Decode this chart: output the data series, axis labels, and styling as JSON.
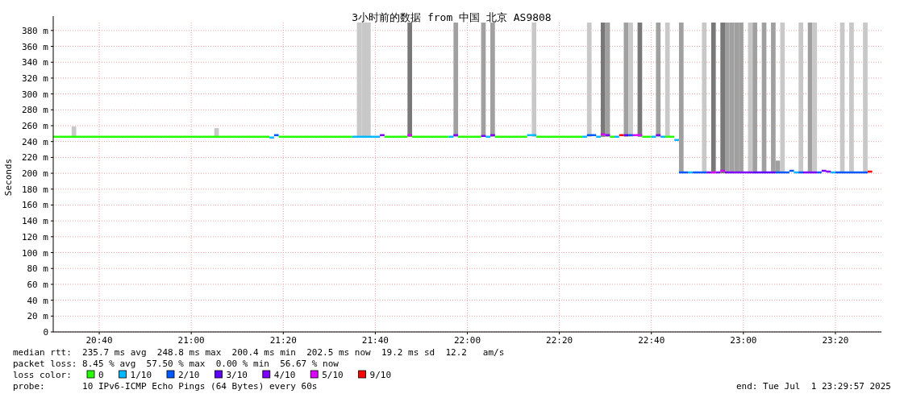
{
  "chart_data": {
    "type": "step",
    "title": "3小时前的数据 from 中国 北京 AS9808",
    "ylabel": "Seconds",
    "xlim": [
      "2025-07-01T20:30",
      "2025-07-01T23:30"
    ],
    "xticks": [
      {
        "value": "2025-07-01T20:40",
        "label": "20:40"
      },
      {
        "value": "2025-07-01T21:00",
        "label": "21:00"
      },
      {
        "value": "2025-07-01T21:20",
        "label": "21:20"
      },
      {
        "value": "2025-07-01T21:40",
        "label": "21:40"
      },
      {
        "value": "2025-07-01T22:00",
        "label": "22:00"
      },
      {
        "value": "2025-07-01T22:20",
        "label": "22:20"
      },
      {
        "value": "2025-07-01T22:40",
        "label": "22:40"
      },
      {
        "value": "2025-07-01T23:00",
        "label": "23:00"
      },
      {
        "value": "2025-07-01T23:20",
        "label": "23:20"
      }
    ],
    "ylim": [
      0,
      390
    ],
    "yticks": [
      0,
      {
        "value": 20,
        "label": "20 m"
      },
      {
        "value": 40,
        "label": "40 m"
      },
      {
        "value": 60,
        "label": "60 m"
      },
      {
        "value": 80,
        "label": "80 m"
      },
      {
        "value": 100,
        "label": "100 m"
      },
      {
        "value": 120,
        "label": "120 m"
      },
      {
        "value": 140,
        "label": "140 m"
      },
      {
        "value": 160,
        "label": "160 m"
      },
      {
        "value": 180,
        "label": "180 m"
      },
      {
        "value": 200,
        "label": "200 m"
      },
      {
        "value": 220,
        "label": "220 m"
      },
      {
        "value": 240,
        "label": "240 m"
      },
      {
        "value": 260,
        "label": "260 m"
      },
      {
        "value": 280,
        "label": "280 m"
      },
      {
        "value": 300,
        "label": "300 m"
      },
      {
        "value": 320,
        "label": "320 m"
      },
      {
        "value": 340,
        "label": "340 m"
      },
      {
        "value": 360,
        "label": "360 m"
      },
      {
        "value": 380,
        "label": "380 m"
      }
    ],
    "grid": true,
    "legend": "bottom",
    "legend_title": "loss color:",
    "series": [
      {
        "type": "bar",
        "x": [
          "2025-07-01T20:34",
          "2025-07-01T21:05",
          "2025-07-01T21:36",
          "2025-07-01T21:37",
          "2025-07-01T21:38",
          "2025-07-01T21:47",
          "2025-07-01T21:57",
          "2025-07-01T22:03",
          "2025-07-01T22:05",
          "2025-07-01T22:14",
          "2025-07-01T22:26",
          "2025-07-01T22:29",
          "2025-07-01T22:30",
          "2025-07-01T22:34",
          "2025-07-01T22:35",
          "2025-07-01T22:37",
          "2025-07-01T22:41",
          "2025-07-01T22:43",
          "2025-07-01T22:46",
          "2025-07-01T22:51",
          "2025-07-01T22:53",
          "2025-07-01T22:55",
          "2025-07-01T22:56",
          "2025-07-01T22:57",
          "2025-07-01T22:58",
          "2025-07-01T22:59",
          "2025-07-01T23:01",
          "2025-07-01T23:02",
          "2025-07-01T23:04",
          "2025-07-01T23:06",
          "2025-07-01T23:07",
          "2025-07-01T23:08",
          "2025-07-01T23:12",
          "2025-07-01T23:14",
          "2025-07-01T23:15",
          "2025-07-01T23:21",
          "2025-07-01T23:23",
          "2025-07-01T23:26"
        ],
        "base": [
          246,
          246,
          246,
          246,
          246,
          246,
          246,
          246,
          246,
          246,
          246,
          246,
          246,
          246,
          246,
          246,
          246,
          246,
          200,
          200,
          200,
          200,
          200,
          200,
          200,
          200,
          200,
          200,
          200,
          200,
          200,
          200,
          200,
          200,
          200,
          200,
          200,
          200
        ],
        "values": [
          13,
          11,
          144,
          144,
          144,
          144,
          144,
          144,
          144,
          144,
          144,
          144,
          144,
          144,
          144,
          144,
          144,
          144,
          190,
          190,
          190,
          190,
          190,
          190,
          190,
          190,
          190,
          190,
          190,
          190,
          16,
          190,
          190,
          190,
          190,
          190,
          190,
          190
        ],
        "colors": [
          "#c8c8c8",
          "#c8c8c8",
          "#c8c8c8",
          "#c8c8c8",
          "#c8c8c8",
          "#787878",
          "#a0a0a0",
          "#a0a0a0",
          "#a0a0a0",
          "#c8c8c8",
          "#c8c8c8",
          "#787878",
          "#a0a0a0",
          "#a0a0a0",
          "#c8c8c8",
          "#787878",
          "#a0a0a0",
          "#c8c8c8",
          "#a0a0a0",
          "#c8c8c8",
          "#787878",
          "#787878",
          "#a0a0a0",
          "#a0a0a0",
          "#a0a0a0",
          "#a0a0a0",
          "#c8c8c8",
          "#a0a0a0",
          "#a0a0a0",
          "#a0a0a0",
          "#a0a0a0",
          "#c8c8c8",
          "#c8c8c8",
          "#a0a0a0",
          "#c8c8c8",
          "#c8c8c8",
          "#c8c8c8",
          "#c8c8c8"
        ]
      },
      {
        "name": "0",
        "color": "#26ff00",
        "x": [
          "2025-07-01T20:30",
          "2025-07-01T21:17",
          null,
          "2025-07-01T21:19",
          "2025-07-01T21:35",
          null,
          "2025-07-01T21:42",
          "2025-07-01T21:47",
          null,
          "2025-07-01T21:48",
          "2025-07-01T21:56",
          null,
          "2025-07-01T21:58",
          "2025-07-01T22:03",
          null,
          "2025-07-01T22:06",
          "2025-07-01T22:13",
          null,
          "2025-07-01T22:15",
          "2025-07-01T22:25",
          null,
          "2025-07-01T22:31",
          "2025-07-01T22:32",
          null,
          "2025-07-01T22:38",
          "2025-07-01T22:40",
          null,
          "2025-07-01T22:43",
          "2025-07-01T22:45"
        ],
        "values": [
          246,
          246,
          null,
          246,
          246,
          null,
          246,
          246,
          null,
          246,
          246,
          null,
          246,
          246,
          null,
          246,
          246,
          null,
          246,
          246,
          null,
          246,
          246,
          null,
          246,
          246,
          null,
          246,
          246
        ]
      },
      {
        "name": "1/10",
        "color": "#00b8ff",
        "x": [
          "2025-07-01T21:17",
          "2025-07-01T21:18",
          null,
          "2025-07-01T21:35",
          "2025-07-01T21:41",
          null,
          "2025-07-01T21:56",
          "2025-07-01T21:57",
          null,
          "2025-07-01T22:04",
          "2025-07-01T22:05",
          null,
          "2025-07-01T22:13",
          "2025-07-01T22:15",
          null,
          "2025-07-01T22:25",
          "2025-07-01T22:26",
          null,
          "2025-07-01T22:28",
          "2025-07-01T22:29",
          null,
          "2025-07-01T22:32",
          "2025-07-01T22:33",
          null,
          "2025-07-01T22:40",
          "2025-07-01T22:41",
          null,
          "2025-07-01T22:42",
          "2025-07-01T22:43",
          null,
          "2025-07-01T22:45",
          "2025-07-01T22:46",
          null,
          "2025-07-01T22:48",
          "2025-07-01T22:49",
          null,
          "2025-07-01T23:11",
          "2025-07-01T23:12",
          null,
          "2025-07-01T23:19",
          "2025-07-01T23:20"
        ],
        "values": [
          245,
          245,
          null,
          246,
          246,
          null,
          246,
          246,
          null,
          246,
          246,
          null,
          248,
          248,
          null,
          246,
          246,
          null,
          246,
          246,
          null,
          246,
          246,
          null,
          246,
          246,
          null,
          246,
          246,
          null,
          242,
          242,
          null,
          201,
          201,
          null,
          201,
          201,
          null,
          201,
          201
        ]
      },
      {
        "name": "2/10",
        "color": "#0059ff",
        "x": [
          "2025-07-01T21:18",
          "2025-07-01T21:19",
          null,
          "2025-07-01T22:26",
          "2025-07-01T22:28",
          null,
          "2025-07-01T22:35",
          "2025-07-01T22:36",
          null,
          "2025-07-01T22:46",
          "2025-07-01T22:48",
          null,
          "2025-07-01T22:49",
          "2025-07-01T22:52",
          null,
          "2025-07-01T23:07",
          "2025-07-01T23:10",
          null,
          "2025-07-01T23:10",
          "2025-07-01T23:11",
          null,
          "2025-07-01T23:12",
          "2025-07-01T23:13",
          null,
          "2025-07-01T23:16",
          "2025-07-01T23:17",
          null,
          "2025-07-01T23:20",
          "2025-07-01T23:27"
        ],
        "values": [
          248,
          248,
          null,
          248,
          248,
          null,
          248,
          248,
          null,
          201,
          201,
          null,
          201,
          201,
          null,
          201,
          201,
          null,
          203,
          203,
          null,
          201,
          201,
          null,
          201,
          201,
          null,
          201,
          201
        ]
      },
      {
        "name": "3/10",
        "color": "#5e00ff",
        "x": [
          "2025-07-01T22:34",
          "2025-07-01T22:35",
          null,
          "2025-07-01T23:02",
          "2025-07-01T23:07"
        ],
        "values": [
          248,
          248,
          null,
          201,
          201
        ]
      },
      {
        "name": "4/10",
        "color": "#7e00ff",
        "x": [
          "2025-07-01T21:41",
          "2025-07-01T21:42",
          null,
          "2025-07-01T21:57",
          "2025-07-01T21:58",
          null,
          "2025-07-01T22:03",
          "2025-07-01T22:04",
          null,
          "2025-07-01T22:05",
          "2025-07-01T22:06",
          null,
          "2025-07-01T22:30",
          "2025-07-01T22:31",
          null,
          "2025-07-01T22:41",
          "2025-07-01T22:42",
          null,
          "2025-07-01T22:52",
          "2025-07-01T22:53",
          null,
          "2025-07-01T22:54",
          "2025-07-01T22:55",
          null,
          "2025-07-01T22:56",
          "2025-07-01T23:02",
          null,
          "2025-07-01T23:13",
          "2025-07-01T23:16",
          null,
          "2025-07-01T23:17",
          "2025-07-01T23:18",
          null,
          "2025-07-01T23:18",
          "2025-07-01T23:19"
        ],
        "values": [
          248,
          248,
          null,
          248,
          248,
          null,
          247,
          247,
          null,
          248,
          248,
          null,
          248,
          248,
          null,
          248,
          248,
          null,
          201,
          201,
          null,
          201,
          201,
          null,
          201,
          201,
          null,
          201,
          201,
          null,
          203,
          203,
          null,
          202,
          202
        ]
      },
      {
        "name": "5/10",
        "color": "#dd00ff",
        "x": [
          "2025-07-01T21:47",
          "2025-07-01T21:48",
          null,
          "2025-07-01T22:29",
          "2025-07-01T22:30",
          null,
          "2025-07-01T22:36",
          "2025-07-01T22:38",
          null,
          "2025-07-01T22:53",
          "2025-07-01T22:54",
          null,
          "2025-07-01T22:55",
          "2025-07-01T22:56"
        ],
        "values": [
          248,
          248,
          null,
          249,
          249,
          null,
          248,
          248,
          null,
          201,
          201,
          null,
          203,
          203
        ]
      },
      {
        "name": "9/10",
        "color": "#ff0000",
        "x": [
          "2025-07-01T22:33",
          "2025-07-01T22:34",
          null,
          "2025-07-01T23:27",
          "2025-07-01T23:28"
        ],
        "values": [
          248,
          248,
          null,
          202,
          202
        ]
      }
    ],
    "annotations": [
      "median rtt:  235.7 ms avg  248.8 ms max  200.4 ms min  202.5 ms now  19.2 ms sd  12.2   am/s",
      "packet loss: 8.45 % avg  57.50 % max  0.00 % min  56.67 % now",
      "probe:       10 IPv6-ICMP Echo Pings (64 Bytes) every 60s",
      "end: Tue Jul  1 23:29:57 2025"
    ]
  }
}
